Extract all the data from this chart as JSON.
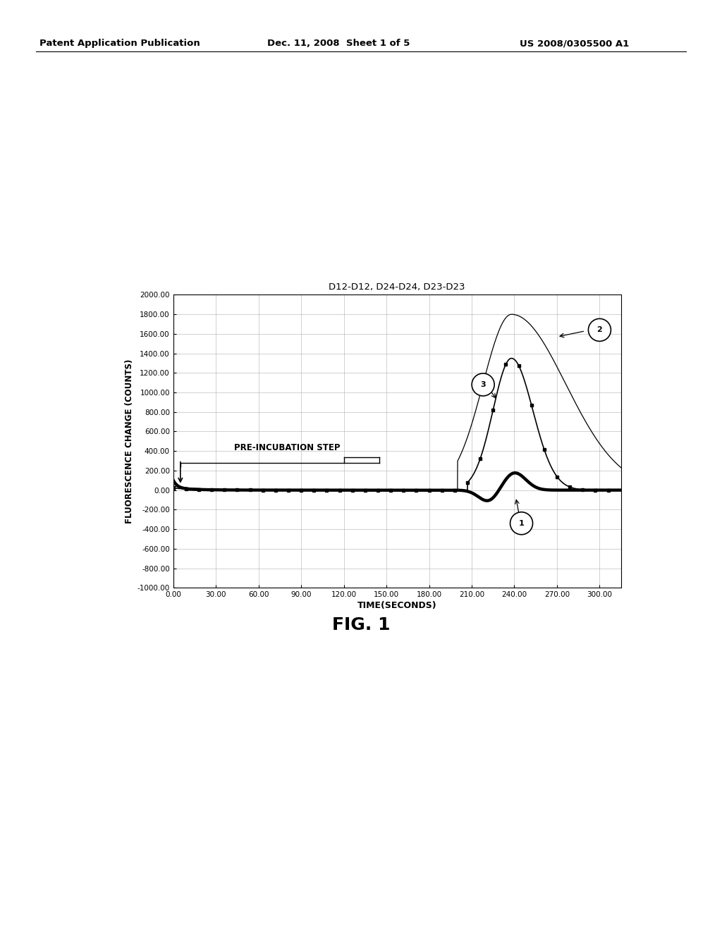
{
  "title": "D12-D12, D24-D24, D23-D23",
  "xlabel": "TIME(SECONDS)",
  "ylabel": "FLUORESCENCE CHANGE (COUNTS)",
  "xlim": [
    0,
    315
  ],
  "ylim": [
    -1000,
    2000
  ],
  "xticks": [
    0,
    30,
    60,
    90,
    120,
    150,
    180,
    210,
    240,
    270,
    300
  ],
  "yticks": [
    -1000,
    -800,
    -600,
    -400,
    -200,
    0,
    200,
    400,
    600,
    800,
    1000,
    1200,
    1400,
    1600,
    1800,
    2000
  ],
  "header_left": "Patent Application Publication",
  "header_center": "Dec. 11, 2008  Sheet 1 of 5",
  "header_right": "US 2008/0305500 A1",
  "fig_label": "FIG. 1",
  "annotation_text": "PRE-INCUBATION STEP",
  "background_color": "#ffffff",
  "grid_color": "#aaaaaa",
  "line_color": "#000000",
  "curve2_peak": 1800,
  "curve2_peak_t": 238,
  "curve3_peak": 1350,
  "curve3_peak_t": 238,
  "curve1_dip": -120,
  "curve1_dip_t": 222,
  "curve1_bump": 180,
  "curve1_bump_t": 240
}
